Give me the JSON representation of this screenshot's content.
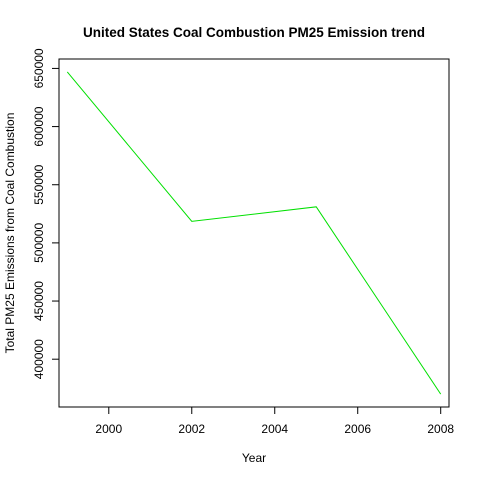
{
  "chart_data": {
    "type": "line",
    "title": "United States Coal Combustion PM25 Emission trend",
    "xlabel": "Year",
    "ylabel": "Total PM25 Emissions from Coal Combustion",
    "x": [
      1999,
      2002,
      2005,
      2008
    ],
    "series": [
      {
        "values": [
          647000,
          518500,
          531000,
          370000
        ],
        "color": "#00e000"
      }
    ],
    "xticks": [
      2000,
      2002,
      2004,
      2006,
      2008
    ],
    "yticks": [
      400000,
      450000,
      500000,
      550000,
      600000,
      650000
    ],
    "xlim": [
      1998.8,
      2008.2
    ],
    "ylim": [
      358900,
      658100
    ],
    "grid": false,
    "legend": false
  }
}
